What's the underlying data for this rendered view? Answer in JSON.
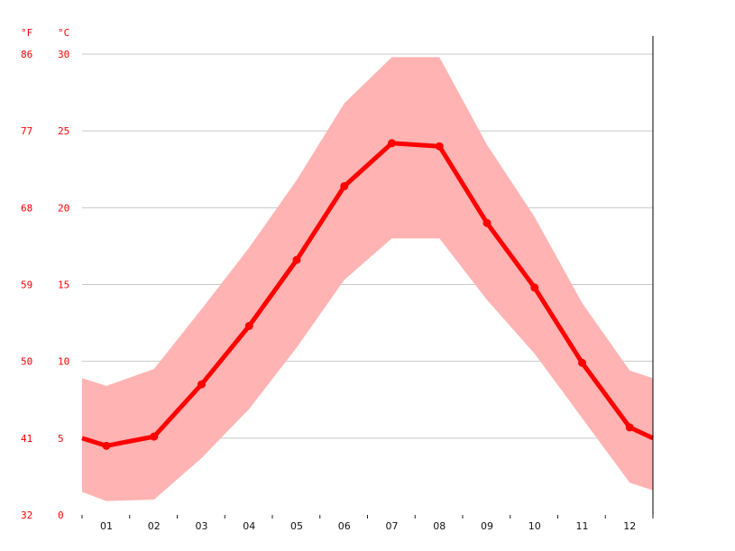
{
  "chart_data": {
    "type": "line",
    "title": "",
    "xlabel": "",
    "ylabel": "",
    "units": {
      "fahrenheit": "°F",
      "celsius": "°C"
    },
    "categories": [
      "01",
      "02",
      "03",
      "04",
      "05",
      "06",
      "07",
      "08",
      "09",
      "10",
      "11",
      "12"
    ],
    "y_ticks_celsius": [
      0,
      5,
      10,
      15,
      20,
      25,
      30
    ],
    "y_ticks_fahrenheit": [
      32,
      41,
      50,
      59,
      68,
      77,
      86
    ],
    "ylim": [
      0,
      30
    ],
    "grid": true,
    "legend": "none",
    "series": [
      {
        "values": [
          4.5,
          5.1,
          8.5,
          12.3,
          16.6,
          21.4,
          24.2,
          24.0,
          19.0,
          14.8,
          9.9,
          5.7
        ]
      }
    ],
    "band": {
      "low": [
        0.9,
        1.0,
        3.7,
        6.9,
        10.9,
        15.3,
        18.0,
        18.0,
        14.0,
        10.5,
        6.3,
        2.1
      ],
      "high": [
        8.4,
        9.5,
        13.4,
        17.4,
        21.8,
        26.8,
        29.8,
        29.8,
        24.1,
        19.4,
        13.8,
        9.4
      ]
    },
    "edge_values": {
      "line_start": 5.0,
      "line_end": 5.0,
      "low_start": 1.5,
      "low_end": 1.6,
      "high_start": 8.9,
      "high_end": 8.9
    },
    "colors": {
      "line": "#ff0000",
      "band": "#ffb3b3",
      "grid": "#c8c8c8",
      "axis_labels": "#ff0000"
    }
  }
}
